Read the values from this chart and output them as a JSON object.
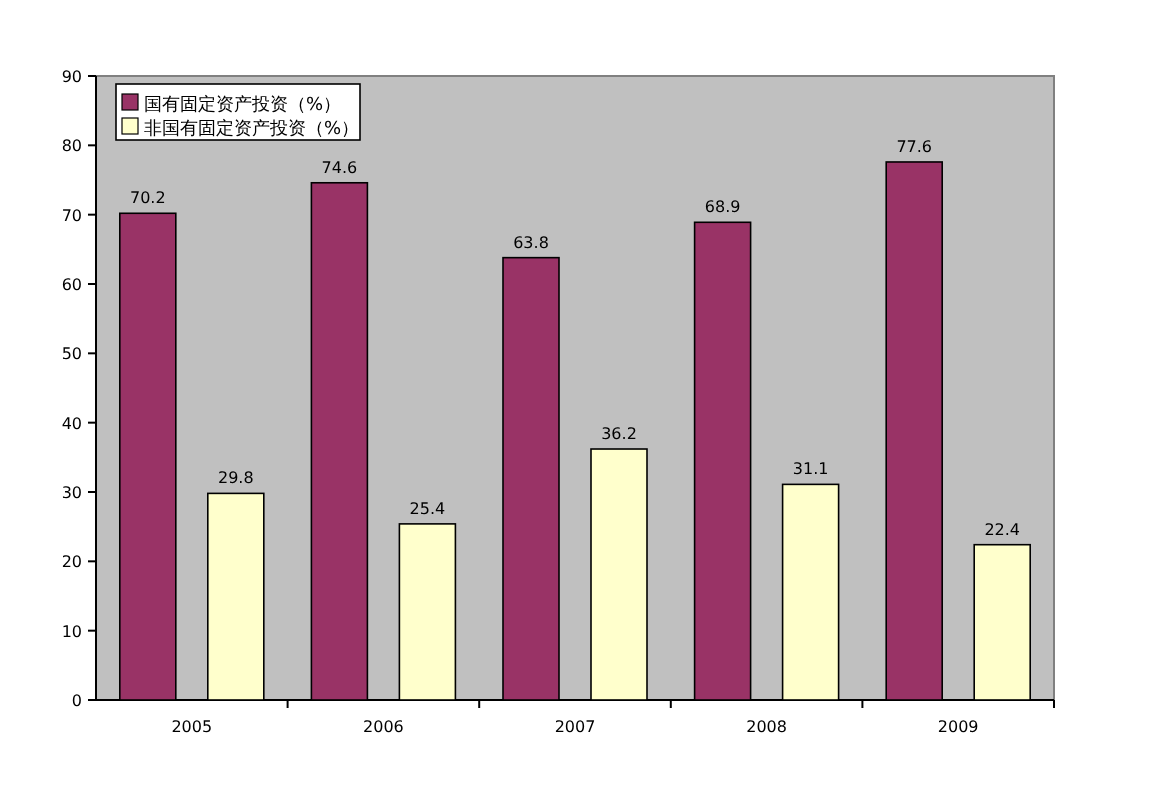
{
  "chart_data": {
    "type": "bar",
    "categories": [
      "2005",
      "2006",
      "2007",
      "2008",
      "2009"
    ],
    "series": [
      {
        "name": "国有固定资产投资（%）",
        "color": "#993366",
        "values": [
          70.2,
          74.6,
          63.8,
          68.9,
          77.6
        ]
      },
      {
        "name": "非国有固定资产投资（%）",
        "color": "#ffffcc",
        "values": [
          29.8,
          25.4,
          36.2,
          31.1,
          22.4
        ]
      }
    ],
    "ylim": [
      0,
      90
    ],
    "yticks": [
      0,
      10,
      20,
      30,
      40,
      50,
      60,
      70,
      80,
      90
    ],
    "data_labels": true,
    "legend": "top left",
    "grid": false
  }
}
